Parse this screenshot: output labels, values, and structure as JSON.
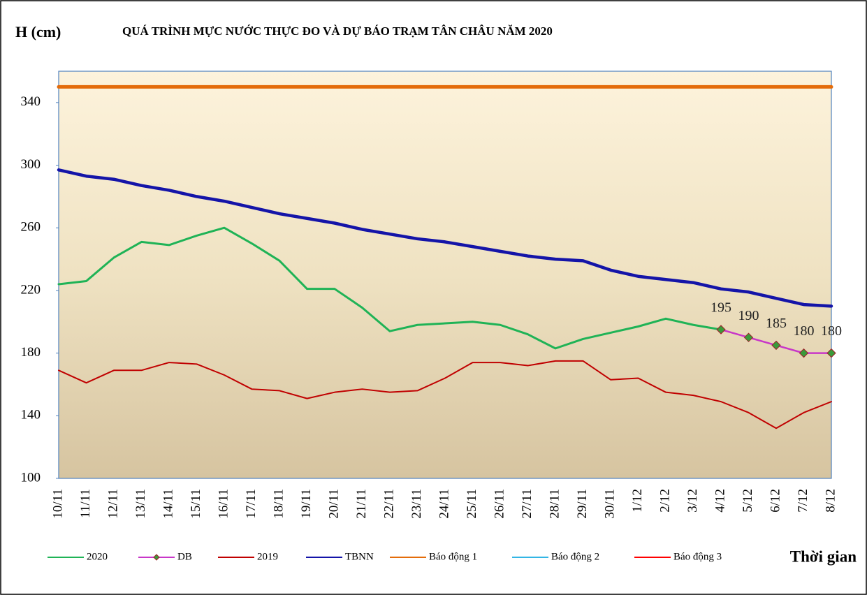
{
  "chart_data": {
    "type": "line",
    "title": "QUÁ TRÌNH MỰC NƯỚC THỰC ĐO VÀ DỰ BÁO TRẠM TÂN CHÂU NĂM 2020",
    "y_label": "H (cm)",
    "x_label": "Thời gian",
    "categories": [
      "10/11",
      "11/11",
      "12/11",
      "13/11",
      "14/11",
      "15/11",
      "16/11",
      "17/11",
      "18/11",
      "19/11",
      "20/11",
      "21/11",
      "22/11",
      "23/11",
      "24/11",
      "25/11",
      "26/11",
      "27/11",
      "28/11",
      "29/11",
      "30/11",
      "1/12",
      "2/12",
      "3/12",
      "4/12",
      "5/12",
      "6/12",
      "7/12",
      "8/12"
    ],
    "ylim": [
      100,
      360
    ],
    "yticks": [
      100,
      140,
      180,
      220,
      260,
      300,
      340
    ],
    "series": [
      {
        "name": "2020",
        "color": "#1fb356",
        "values": [
          224,
          226,
          241,
          251,
          249,
          255,
          260,
          250,
          239,
          221,
          221,
          209,
          194,
          198,
          199,
          200,
          198,
          192,
          183,
          189,
          193,
          197,
          202,
          198,
          195,
          null,
          null,
          null,
          null
        ]
      },
      {
        "name": "DB",
        "color": "#c837c8",
        "marker": "diamond",
        "values": [
          null,
          null,
          null,
          null,
          null,
          null,
          null,
          null,
          null,
          null,
          null,
          null,
          null,
          null,
          null,
          null,
          null,
          null,
          null,
          null,
          null,
          null,
          null,
          null,
          195,
          190,
          185,
          180,
          180
        ]
      },
      {
        "name": "2019",
        "color": "#c00000",
        "values": [
          169,
          161,
          169,
          169,
          174,
          173,
          166,
          157,
          156,
          151,
          155,
          157,
          155,
          156,
          164,
          174,
          174,
          172,
          175,
          175,
          163,
          164,
          155,
          153,
          149,
          142,
          132,
          142,
          149
        ]
      },
      {
        "name": "TBNN",
        "color": "#1414a8",
        "values": [
          297,
          293,
          291,
          287,
          284,
          280,
          277,
          273,
          269,
          266,
          263,
          259,
          256,
          253,
          251,
          248,
          245,
          242,
          240,
          239,
          233,
          229,
          227,
          225,
          221,
          219,
          215,
          211,
          210
        ]
      },
      {
        "name": "Báo động 1",
        "color": "#e46c0a",
        "values": [
          350,
          350,
          350,
          350,
          350,
          350,
          350,
          350,
          350,
          350,
          350,
          350,
          350,
          350,
          350,
          350,
          350,
          350,
          350,
          350,
          350,
          350,
          350,
          350,
          350,
          350,
          350,
          350,
          350
        ]
      },
      {
        "name": "Báo động 2",
        "color": "#33b5e5",
        "values": [
          null,
          null,
          null,
          null,
          null,
          null,
          null,
          null,
          null,
          null,
          null,
          null,
          null,
          null,
          null,
          null,
          null,
          null,
          null,
          null,
          null,
          null,
          null,
          null,
          null,
          null,
          null,
          null,
          null
        ]
      },
      {
        "name": "Báo động 3",
        "color": "#ff0000",
        "values": [
          null,
          null,
          null,
          null,
          null,
          null,
          null,
          null,
          null,
          null,
          null,
          null,
          null,
          null,
          null,
          null,
          null,
          null,
          null,
          null,
          null,
          null,
          null,
          null,
          null,
          null,
          null,
          null,
          null
        ]
      }
    ]
  }
}
